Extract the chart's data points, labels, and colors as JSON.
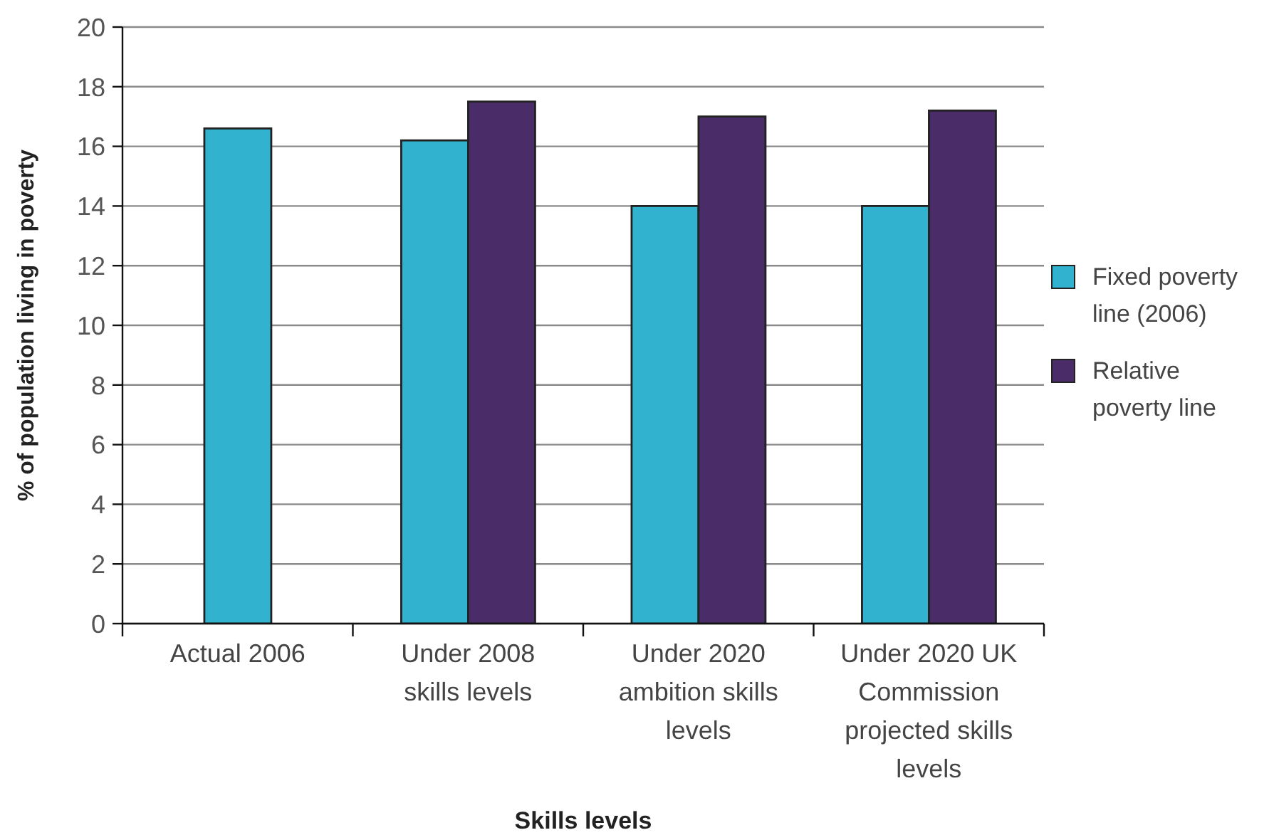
{
  "chart_data": {
    "type": "bar",
    "xlabel": "Skills levels",
    "ylabel": "% of population living in poverty",
    "categories": [
      "Actual 2006",
      "Under 2008 skills levels",
      "Under 2020 ambition skills levels",
      "Under 2020 UK Commission projected skills levels"
    ],
    "series": [
      {
        "name": "Fixed poverty line (2006)",
        "color": "#31b3cf",
        "values": [
          16.6,
          16.2,
          14.0,
          14.0
        ]
      },
      {
        "name": "Relative poverty line",
        "color": "#4a2d68",
        "values": [
          null,
          17.5,
          17.0,
          17.2
        ]
      }
    ],
    "ylim": [
      0,
      20
    ],
    "yticks": [
      0,
      2,
      4,
      6,
      8,
      10,
      12,
      14,
      16,
      18,
      20
    ],
    "grid": "y",
    "legend": "right"
  }
}
